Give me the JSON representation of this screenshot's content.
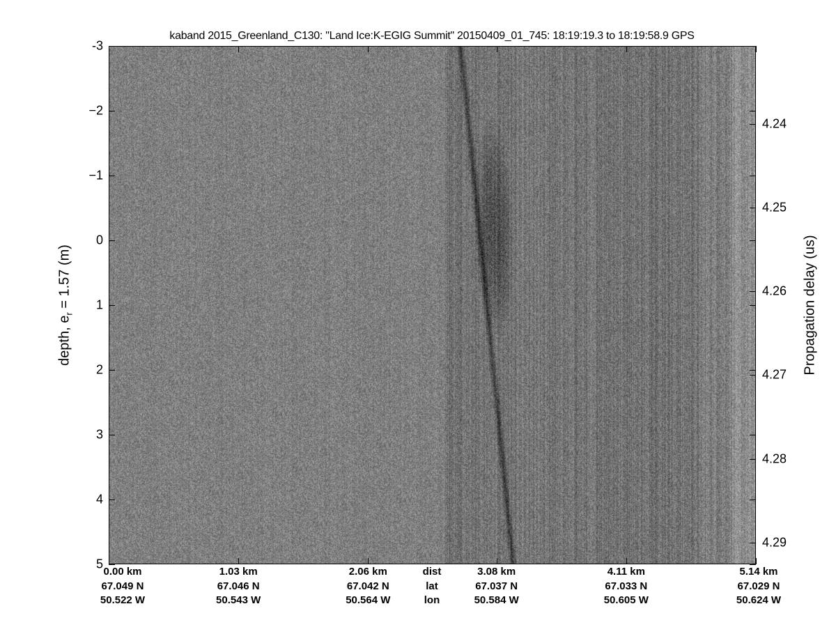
{
  "chart_data": {
    "type": "heatmap",
    "title": "kaband 2015_Greenland_C130: \"Land Ice:K-EGIG Summit\"  20150409_01_745: 18:19:19.3 to 18:19:58.9 GPS",
    "ylabel": "depth, e",
    "ylabel_sub": "r",
    "ylabel_rest": " = 1.57 (m)",
    "y2label": "Propagation delay (us)",
    "ylim": [
      -3,
      5
    ],
    "y_reversed": true,
    "y_ticks": [
      "-3",
      "−2",
      "−1",
      "0",
      "1",
      "2",
      "3",
      "4",
      "5"
    ],
    "y_tick_values": [
      -3,
      -2,
      -1,
      0,
      1,
      2,
      3,
      4,
      5
    ],
    "y2_ticks": [
      "4.24",
      "4.25",
      "4.26",
      "4.27",
      "4.28",
      "4.29"
    ],
    "y2_tick_values": [
      4.24,
      4.25,
      4.26,
      4.27,
      4.28,
      4.29
    ],
    "y2lim": [
      4.2307,
      4.2926
    ],
    "colormap": "gray",
    "x_rows": {
      "dist": {
        "label": "dist",
        "ticks": [
          "0.00 km",
          "1.03 km",
          "2.06 km",
          "3.08 km",
          "4.11 km",
          "5.14 km"
        ]
      },
      "lat": {
        "label": "lat",
        "ticks": [
          "67.049 N",
          "67.046 N",
          "67.042 N",
          "67.037 N",
          "67.033 N",
          "67.029 N"
        ]
      },
      "lon": {
        "label": "lon",
        "ticks": [
          "50.522 W",
          "50.543 W",
          "50.564 W",
          "50.584 W",
          "50.605 W",
          "50.624 W"
        ]
      }
    },
    "x_tick_values_km": [
      0.0,
      1.03,
      2.06,
      3.08,
      4.11,
      5.14
    ],
    "xlim_km": [
      0,
      5.14
    ]
  }
}
